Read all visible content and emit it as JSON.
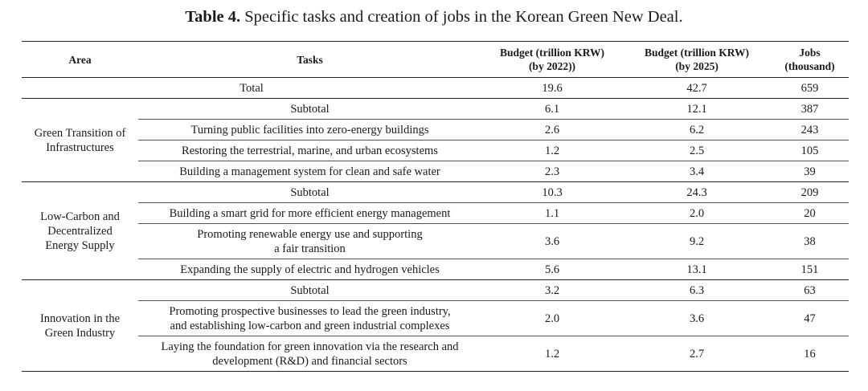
{
  "caption": {
    "label": "Table 4.",
    "text": "Specific tasks and creation of jobs in the Korean Green New Deal."
  },
  "headers": {
    "area": "Area",
    "tasks": "Tasks",
    "budget_2022": [
      "Budget (trillion KRW)",
      "(by 2022))"
    ],
    "budget_2025": [
      "Budget (trillion KRW)",
      "(by 2025)"
    ],
    "jobs": [
      "Jobs",
      "(thousand)"
    ]
  },
  "total": {
    "label": "Total",
    "b2022": "19.6",
    "b2025": "42.7",
    "jobs": "659"
  },
  "groups": [
    {
      "area": [
        "Green Transition of",
        "Infrastructures"
      ],
      "rows": [
        {
          "task": [
            "Subtotal"
          ],
          "b2022": "6.1",
          "b2025": "12.1",
          "jobs": "387"
        },
        {
          "task": [
            "Turning public facilities into zero-energy buildings"
          ],
          "b2022": "2.6",
          "b2025": "6.2",
          "jobs": "243"
        },
        {
          "task": [
            "Restoring the terrestrial, marine, and urban ecosystems"
          ],
          "b2022": "1.2",
          "b2025": "2.5",
          "jobs": "105"
        },
        {
          "task": [
            "Building a management system for clean and safe water"
          ],
          "b2022": "2.3",
          "b2025": "3.4",
          "jobs": "39"
        }
      ]
    },
    {
      "area": [
        "Low-Carbon and",
        "Decentralized",
        "Energy Supply"
      ],
      "rows": [
        {
          "task": [
            "Subtotal"
          ],
          "b2022": "10.3",
          "b2025": "24.3",
          "jobs": "209"
        },
        {
          "task": [
            "Building a smart grid for more efficient energy management"
          ],
          "b2022": "1.1",
          "b2025": "2.0",
          "jobs": "20"
        },
        {
          "task": [
            "Promoting renewable energy use and supporting",
            "a fair transition"
          ],
          "b2022": "3.6",
          "b2025": "9.2",
          "jobs": "38"
        },
        {
          "task": [
            "Expanding the supply of electric and hydrogen vehicles"
          ],
          "b2022": "5.6",
          "b2025": "13.1",
          "jobs": "151"
        }
      ]
    },
    {
      "area": [
        "Innovation in the",
        "Green Industry"
      ],
      "rows": [
        {
          "task": [
            "Subtotal"
          ],
          "b2022": "3.2",
          "b2025": "6.3",
          "jobs": "63"
        },
        {
          "task": [
            "Promoting prospective businesses to lead the green industry,",
            "and establishing low-carbon and green industrial complexes"
          ],
          "b2022": "2.0",
          "b2025": "3.6",
          "jobs": "47"
        },
        {
          "task": [
            "Laying the foundation for green innovation via the research and",
            "development (R&D) and financial sectors"
          ],
          "b2022": "1.2",
          "b2025": "2.7",
          "jobs": "16"
        }
      ]
    }
  ]
}
